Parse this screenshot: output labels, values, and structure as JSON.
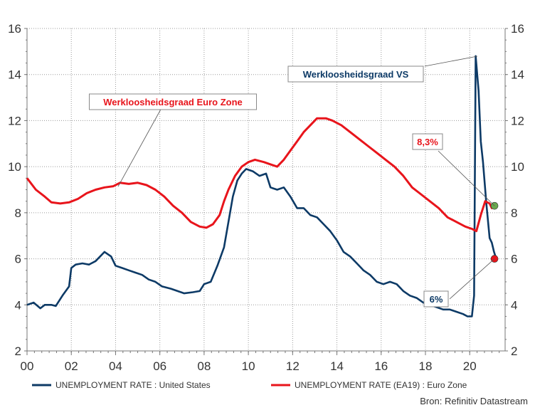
{
  "chart_data": {
    "type": "line",
    "title": "",
    "xlabel": "",
    "ylabel": "",
    "xlim": [
      2000,
      2021.6
    ],
    "ylim": [
      2,
      16
    ],
    "x_ticks": [
      2000,
      2002,
      2004,
      2006,
      2008,
      2010,
      2012,
      2014,
      2016,
      2018,
      2020
    ],
    "x_tick_labels": [
      "00",
      "02",
      "04",
      "06",
      "08",
      "10",
      "12",
      "14",
      "16",
      "18",
      "20"
    ],
    "y_ticks": [
      2,
      4,
      6,
      8,
      10,
      12,
      14,
      16
    ],
    "y_tick_labels": [
      "2",
      "4",
      "6",
      "8",
      "10",
      "12",
      "14",
      "16"
    ],
    "grid": true,
    "legend_position": "bottom",
    "series": [
      {
        "name": "UNEMPLOYMENT RATE : United States",
        "color": "#0d3a66",
        "points": [
          [
            2000.0,
            4.0
          ],
          [
            2000.3,
            4.1
          ],
          [
            2000.6,
            3.85
          ],
          [
            2000.8,
            4.0
          ],
          [
            2001.1,
            4.0
          ],
          [
            2001.3,
            3.95
          ],
          [
            2001.6,
            4.4
          ],
          [
            2001.9,
            4.8
          ],
          [
            2002.0,
            5.6
          ],
          [
            2002.2,
            5.75
          ],
          [
            2002.5,
            5.8
          ],
          [
            2002.8,
            5.75
          ],
          [
            2003.1,
            5.9
          ],
          [
            2003.3,
            6.1
          ],
          [
            2003.5,
            6.3
          ],
          [
            2003.8,
            6.1
          ],
          [
            2004.0,
            5.7
          ],
          [
            2004.3,
            5.6
          ],
          [
            2004.6,
            5.5
          ],
          [
            2004.9,
            5.4
          ],
          [
            2005.2,
            5.3
          ],
          [
            2005.5,
            5.1
          ],
          [
            2005.8,
            5.0
          ],
          [
            2006.1,
            4.8
          ],
          [
            2006.5,
            4.7
          ],
          [
            2006.8,
            4.6
          ],
          [
            2007.1,
            4.5
          ],
          [
            2007.5,
            4.55
          ],
          [
            2007.8,
            4.6
          ],
          [
            2008.0,
            4.9
          ],
          [
            2008.3,
            5.0
          ],
          [
            2008.6,
            5.7
          ],
          [
            2008.9,
            6.5
          ],
          [
            2009.1,
            7.6
          ],
          [
            2009.3,
            8.7
          ],
          [
            2009.5,
            9.4
          ],
          [
            2009.7,
            9.7
          ],
          [
            2009.9,
            9.9
          ],
          [
            2010.2,
            9.8
          ],
          [
            2010.5,
            9.6
          ],
          [
            2010.8,
            9.7
          ],
          [
            2011.0,
            9.1
          ],
          [
            2011.3,
            9.0
          ],
          [
            2011.6,
            9.1
          ],
          [
            2011.9,
            8.7
          ],
          [
            2012.2,
            8.2
          ],
          [
            2012.5,
            8.2
          ],
          [
            2012.8,
            7.9
          ],
          [
            2013.1,
            7.8
          ],
          [
            2013.4,
            7.5
          ],
          [
            2013.7,
            7.2
          ],
          [
            2014.0,
            6.8
          ],
          [
            2014.3,
            6.3
          ],
          [
            2014.6,
            6.1
          ],
          [
            2014.9,
            5.8
          ],
          [
            2015.2,
            5.5
          ],
          [
            2015.5,
            5.3
          ],
          [
            2015.8,
            5.0
          ],
          [
            2016.1,
            4.9
          ],
          [
            2016.4,
            5.0
          ],
          [
            2016.7,
            4.9
          ],
          [
            2017.0,
            4.6
          ],
          [
            2017.3,
            4.4
          ],
          [
            2017.6,
            4.3
          ],
          [
            2017.9,
            4.1
          ],
          [
            2018.2,
            4.0
          ],
          [
            2018.5,
            3.9
          ],
          [
            2018.8,
            3.8
          ],
          [
            2019.1,
            3.8
          ],
          [
            2019.4,
            3.7
          ],
          [
            2019.7,
            3.6
          ],
          [
            2019.9,
            3.5
          ],
          [
            2020.1,
            3.5
          ],
          [
            2020.2,
            4.4
          ],
          [
            2020.27,
            14.8
          ],
          [
            2020.4,
            13.3
          ],
          [
            2020.5,
            11.1
          ],
          [
            2020.6,
            10.2
          ],
          [
            2020.75,
            8.4
          ],
          [
            2020.9,
            6.9
          ],
          [
            2021.0,
            6.7
          ],
          [
            2021.1,
            6.3
          ],
          [
            2021.2,
            6.0
          ]
        ]
      },
      {
        "name": "UNEMPLOYMENT RATE (EA19) : Euro Zone",
        "color": "#e8141b",
        "points": [
          [
            2000.0,
            9.5
          ],
          [
            2000.4,
            9.0
          ],
          [
            2000.8,
            8.7
          ],
          [
            2001.1,
            8.45
          ],
          [
            2001.5,
            8.4
          ],
          [
            2001.9,
            8.45
          ],
          [
            2002.3,
            8.6
          ],
          [
            2002.7,
            8.85
          ],
          [
            2003.1,
            9.0
          ],
          [
            2003.5,
            9.1
          ],
          [
            2003.9,
            9.15
          ],
          [
            2004.2,
            9.3
          ],
          [
            2004.6,
            9.25
          ],
          [
            2005.0,
            9.3
          ],
          [
            2005.4,
            9.2
          ],
          [
            2005.8,
            9.0
          ],
          [
            2006.2,
            8.7
          ],
          [
            2006.6,
            8.3
          ],
          [
            2007.0,
            8.0
          ],
          [
            2007.4,
            7.6
          ],
          [
            2007.8,
            7.4
          ],
          [
            2008.1,
            7.35
          ],
          [
            2008.4,
            7.5
          ],
          [
            2008.7,
            7.9
          ],
          [
            2008.9,
            8.5
          ],
          [
            2009.1,
            9.0
          ],
          [
            2009.4,
            9.6
          ],
          [
            2009.7,
            10.0
          ],
          [
            2010.0,
            10.2
          ],
          [
            2010.3,
            10.3
          ],
          [
            2010.7,
            10.2
          ],
          [
            2011.0,
            10.1
          ],
          [
            2011.3,
            10.0
          ],
          [
            2011.6,
            10.3
          ],
          [
            2011.9,
            10.7
          ],
          [
            2012.2,
            11.1
          ],
          [
            2012.5,
            11.5
          ],
          [
            2012.8,
            11.8
          ],
          [
            2013.1,
            12.1
          ],
          [
            2013.5,
            12.1
          ],
          [
            2013.8,
            12.0
          ],
          [
            2014.2,
            11.8
          ],
          [
            2014.6,
            11.5
          ],
          [
            2015.0,
            11.2
          ],
          [
            2015.4,
            10.9
          ],
          [
            2015.8,
            10.6
          ],
          [
            2016.2,
            10.3
          ],
          [
            2016.6,
            10.0
          ],
          [
            2017.0,
            9.6
          ],
          [
            2017.4,
            9.1
          ],
          [
            2017.8,
            8.8
          ],
          [
            2018.2,
            8.5
          ],
          [
            2018.6,
            8.2
          ],
          [
            2019.0,
            7.8
          ],
          [
            2019.4,
            7.6
          ],
          [
            2019.8,
            7.4
          ],
          [
            2020.1,
            7.3
          ],
          [
            2020.3,
            7.2
          ],
          [
            2020.5,
            7.9
          ],
          [
            2020.7,
            8.5
          ],
          [
            2020.9,
            8.4
          ],
          [
            2021.0,
            8.2
          ],
          [
            2021.1,
            8.3
          ]
        ]
      }
    ],
    "markers": [
      {
        "series": 0,
        "x": 2021.12,
        "y": 6.0,
        "color": "#e8141b"
      },
      {
        "series": 1,
        "x": 2021.12,
        "y": 8.3,
        "color": "#6aa84f"
      }
    ],
    "annotations": [
      {
        "id": "us-name",
        "text": "Werkloosheidsgraad VS",
        "color": "#0d3a66"
      },
      {
        "id": "ez-name",
        "text": "Werkloosheidsgraad Euro Zone",
        "color": "#e8141b"
      },
      {
        "id": "ez-value",
        "text": "8,3%",
        "color": "#e8141b"
      },
      {
        "id": "us-value",
        "text": "6%",
        "color": "#0d3a66"
      }
    ],
    "source": "Bron: Refinitiv Datastream"
  }
}
